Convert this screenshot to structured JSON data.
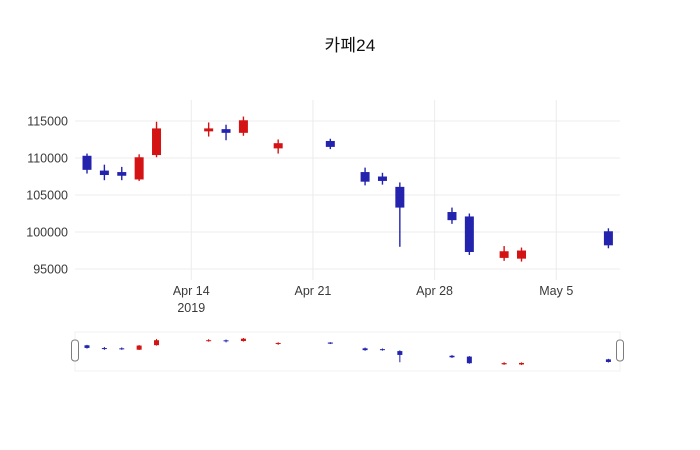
{
  "chart_data": {
    "type": "candlestick",
    "title": "카페24",
    "colors": {
      "increasing": "#d41414",
      "decreasing": "#2323ae",
      "grid": "#ececec",
      "tick_label": "#3a3a3a"
    },
    "y_axis": {
      "ticks": [
        95000,
        100000,
        105000,
        110000,
        115000
      ]
    },
    "x_axis": {
      "start_date": "2019-04-08",
      "ticks": [
        {
          "label": "Apr 14",
          "sub": "2019",
          "date": "2019-04-14"
        },
        {
          "label": "Apr 21",
          "sub": "",
          "date": "2019-04-21"
        },
        {
          "label": "Apr 28",
          "sub": "",
          "date": "2019-04-28"
        },
        {
          "label": "May 5",
          "sub": "",
          "date": "2019-05-05"
        }
      ]
    },
    "candles": [
      {
        "date": "2019-04-08",
        "open": 110300,
        "high": 110600,
        "low": 107900,
        "close": 108400
      },
      {
        "date": "2019-04-09",
        "open": 108300,
        "high": 109100,
        "low": 107000,
        "close": 107700
      },
      {
        "date": "2019-04-10",
        "open": 108100,
        "high": 108800,
        "low": 107000,
        "close": 107600
      },
      {
        "date": "2019-04-11",
        "open": 107100,
        "high": 110500,
        "low": 106900,
        "close": 110100
      },
      {
        "date": "2019-04-12",
        "open": 110400,
        "high": 114900,
        "low": 110100,
        "close": 114000
      },
      {
        "date": "2019-04-15",
        "open": 113600,
        "high": 114800,
        "low": 112900,
        "close": 114000
      },
      {
        "date": "2019-04-16",
        "open": 113900,
        "high": 114500,
        "low": 112400,
        "close": 113400
      },
      {
        "date": "2019-04-17",
        "open": 113400,
        "high": 115600,
        "low": 113000,
        "close": 115100
      },
      {
        "date": "2019-04-19",
        "open": 111300,
        "high": 112500,
        "low": 110600,
        "close": 112000
      },
      {
        "date": "2019-04-22",
        "open": 112300,
        "high": 112600,
        "low": 111200,
        "close": 111500
      },
      {
        "date": "2019-04-24",
        "open": 108100,
        "high": 108700,
        "low": 106300,
        "close": 106800
      },
      {
        "date": "2019-04-25",
        "open": 107500,
        "high": 108000,
        "low": 106400,
        "close": 106900
      },
      {
        "date": "2019-04-26",
        "open": 106100,
        "high": 106700,
        "low": 98000,
        "close": 103300
      },
      {
        "date": "2019-04-29",
        "open": 102700,
        "high": 103300,
        "low": 101100,
        "close": 101600
      },
      {
        "date": "2019-04-30",
        "open": 102100,
        "high": 102500,
        "low": 96900,
        "close": 97300
      },
      {
        "date": "2019-05-02",
        "open": 96500,
        "high": 98100,
        "low": 96100,
        "close": 97400
      },
      {
        "date": "2019-05-03",
        "open": 96400,
        "high": 97900,
        "low": 96000,
        "close": 97500
      },
      {
        "date": "2019-05-08",
        "open": 100100,
        "high": 100500,
        "low": 97800,
        "close": 98200
      }
    ],
    "range_slider": {
      "present": true
    }
  }
}
